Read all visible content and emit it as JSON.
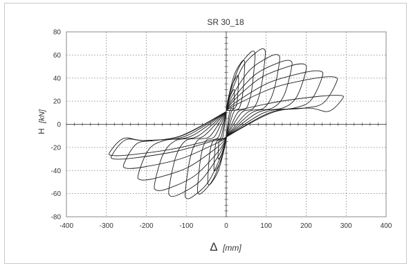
{
  "chart_data": {
    "type": "line",
    "title": "SR 30_18",
    "xlabel": {
      "symbol": "Δ",
      "unit": "[mm]"
    },
    "ylabel": {
      "symbol": "H",
      "unit": "[kN]"
    },
    "xlim": [
      -400,
      400
    ],
    "ylim": [
      -80,
      80
    ],
    "xticks": [
      "-400",
      "-300",
      "-200",
      "-100",
      "0",
      "100",
      "200",
      "300",
      "400"
    ],
    "yticks": [
      "80",
      "60",
      "40",
      "20",
      "0",
      "-20",
      "-40",
      "-60",
      "-80"
    ],
    "grid": true,
    "series": [
      {
        "cycles": [
          {
            "dmax": 20,
            "hmax": 30,
            "dmin": -20,
            "hmin": -30
          },
          {
            "dmax": 30,
            "hmax": 42,
            "dmin": -30,
            "hmin": -40
          },
          {
            "dmax": 45,
            "hmax": 55,
            "dmin": -45,
            "hmin": -52
          },
          {
            "dmax": 70,
            "hmax": 63,
            "dmin": -70,
            "hmin": -60
          },
          {
            "dmax": 95,
            "hmax": 65,
            "dmin": -100,
            "hmin": -64
          },
          {
            "dmax": 130,
            "hmax": 60,
            "dmin": -140,
            "hmin": -62
          },
          {
            "dmax": 160,
            "hmax": 55,
            "dmin": -175,
            "hmin": -57
          },
          {
            "dmax": 195,
            "hmax": 52,
            "dmin": -215,
            "hmin": -48
          },
          {
            "dmax": 235,
            "hmax": 46,
            "dmin": -250,
            "hmin": -38
          },
          {
            "dmax": 270,
            "hmax": 41,
            "dmin": -280,
            "hmin": -30
          },
          {
            "dmax": 285,
            "hmax": 25,
            "dmin": -285,
            "hmin": -27
          }
        ]
      }
    ]
  }
}
